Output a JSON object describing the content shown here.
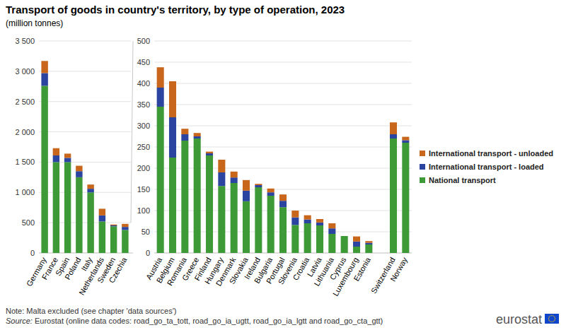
{
  "chart_data": [
    {
      "type": "bar",
      "stacked": true,
      "grid": true,
      "title": "Transport of goods in country's territory, by type of operation, 2023",
      "subtitle": "(million tonnes)",
      "note": "Note: Malta excluded (see chapter 'data sources')",
      "source": "Source: Eurostat (online data codes: road_go_ta_tott, road_go_ia_ugtt, road_go_ia_lgtt and road_go_cta_gtt)",
      "logo": "eurostat",
      "categories": [
        "Germany",
        "France",
        "Spain",
        "Poland",
        "Italy",
        "Netherlands",
        "Sweden",
        "Czechia"
      ],
      "series": [
        {
          "name": "National transport",
          "color": "#3d9a37",
          "values": [
            2760,
            1500,
            1500,
            1250,
            1000,
            520,
            440,
            380
          ]
        },
        {
          "name": "International transport - loaded",
          "color": "#2a44a0",
          "values": [
            210,
            110,
            70,
            100,
            60,
            100,
            15,
            50
          ]
        },
        {
          "name": "International transport - unloaded",
          "color": "#c8661b",
          "values": [
            200,
            120,
            70,
            90,
            70,
            110,
            15,
            50
          ]
        }
      ],
      "ylim": [
        0,
        3500
      ],
      "yticks": [
        0,
        500,
        {
          "value": 1000,
          "label": "1 000"
        },
        {
          "value": 1500,
          "label": "1 500"
        },
        {
          "value": 2000,
          "label": "2 000"
        },
        {
          "value": 2500,
          "label": "2 500"
        },
        {
          "value": 3000,
          "label": "3 000"
        },
        {
          "value": 3500,
          "label": "3 500"
        }
      ]
    },
    {
      "type": "bar",
      "stacked": true,
      "grid": true,
      "legend": "right",
      "categories": [
        "Austria",
        "Belgium",
        "Romania",
        "Greece",
        "Finland",
        "Hungary",
        "Denmark",
        "Slovakia",
        "Ireland",
        "Bulgaria",
        "Portugal",
        "Slovenia",
        "Croatia",
        "Latvia",
        "Lithuania",
        "Cyprus",
        "Luxembourg",
        "Estonia",
        null,
        "Switzerland",
        "Norway"
      ],
      "series": [
        {
          "color": "#3d9a37",
          "values": [
            345,
            225,
            265,
            270,
            230,
            158,
            165,
            122,
            155,
            135,
            108,
            66,
            70,
            65,
            45,
            40,
            15,
            20,
            null,
            270,
            260
          ]
        },
        {
          "color": "#2a44a0",
          "values": [
            45,
            95,
            15,
            5,
            5,
            32,
            13,
            25,
            5,
            8,
            15,
            18,
            9,
            7,
            13,
            0,
            12,
            4,
            null,
            10,
            6
          ]
        },
        {
          "color": "#c8661b",
          "values": [
            48,
            85,
            13,
            8,
            4,
            30,
            14,
            25,
            3,
            9,
            15,
            16,
            10,
            8,
            12,
            0,
            12,
            4,
            null,
            28,
            8
          ]
        }
      ],
      "ylim": [
        0,
        500
      ],
      "yticks": [
        0,
        50,
        100,
        150,
        200,
        250,
        300,
        350,
        400,
        450,
        500
      ]
    }
  ]
}
